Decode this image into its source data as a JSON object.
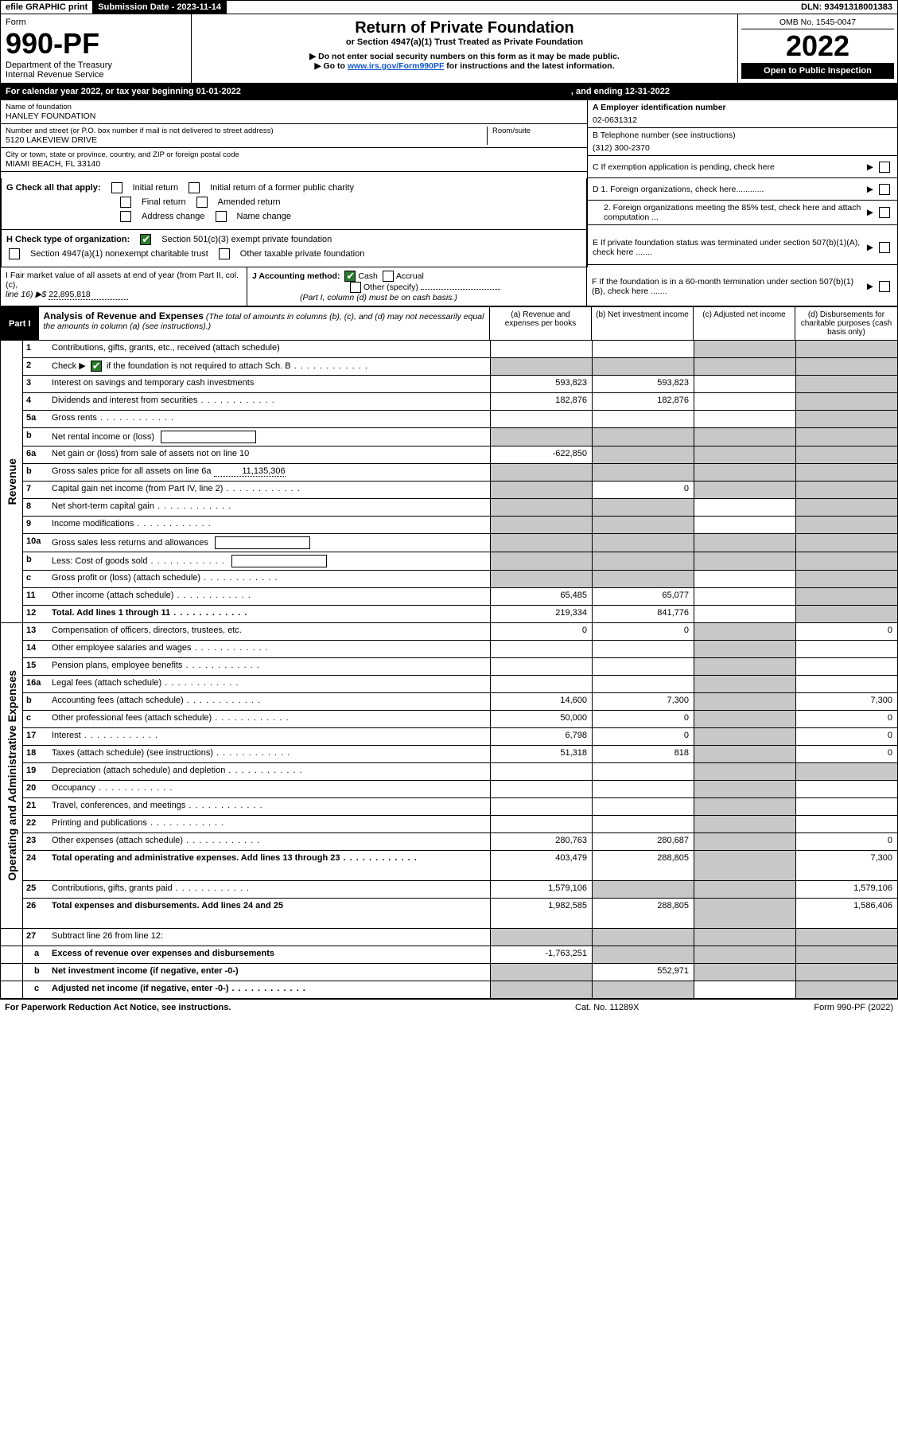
{
  "top_bar": {
    "efile": "efile GRAPHIC print",
    "submission_label": "Submission Date - 2023-11-14",
    "dln": "DLN: 93491318001383"
  },
  "header": {
    "form_word": "Form",
    "form_number": "990-PF",
    "dept": "Department of the Treasury",
    "irs": "Internal Revenue Service",
    "title": "Return of Private Foundation",
    "subtitle": "or Section 4947(a)(1) Trust Treated as Private Foundation",
    "instr1": "▶ Do not enter social security numbers on this form as it may be made public.",
    "instr2_pre": "▶ Go to ",
    "instr2_link": "www.irs.gov/Form990PF",
    "instr2_post": " for instructions and the latest information.",
    "omb": "OMB No. 1545-0047",
    "year": "2022",
    "open_public": "Open to Public Inspection"
  },
  "year_bar": {
    "pre": "For calendar year 2022, or tax year beginning 01-01-2022",
    "post": ", and ending 12-31-2022"
  },
  "entity": {
    "name_label": "Name of foundation",
    "name": "HANLEY FOUNDATION",
    "addr_label": "Number and street (or P.O. box number if mail is not delivered to street address)",
    "addr": "5120 LAKEVIEW DRIVE",
    "room_label": "Room/suite",
    "city_label": "City or town, state or province, country, and ZIP or foreign postal code",
    "city": "MIAMI BEACH, FL  33140",
    "a_label": "A Employer identification number",
    "a_val": "02-0631312",
    "b_label": "B Telephone number (see instructions)",
    "b_val": "(312) 300-2370",
    "c_label": "C If exemption application is pending, check here",
    "d1_label": "D 1. Foreign organizations, check here............",
    "d2_label": "2. Foreign organizations meeting the 85% test, check here and attach computation ...",
    "e_label": "E  If private foundation status was terminated under section 507(b)(1)(A), check here .......",
    "f_label": "F  If the foundation is in a 60-month termination under section 507(b)(1)(B), check here ......."
  },
  "g": {
    "label": "G Check all that apply:",
    "initial": "Initial return",
    "initial_former": "Initial return of a former public charity",
    "final": "Final return",
    "amended": "Amended return",
    "address": "Address change",
    "name_change": "Name change"
  },
  "h": {
    "label": "H Check type of organization:",
    "opt1": "Section 501(c)(3) exempt private foundation",
    "opt2": "Section 4947(a)(1) nonexempt charitable trust",
    "opt3": "Other taxable private foundation"
  },
  "i": {
    "label": "I Fair market value of all assets at end of year (from Part II, col. (c),",
    "line16": "line 16) ▶$",
    "val": "22,895,818"
  },
  "j": {
    "label": "J Accounting method:",
    "cash": "Cash",
    "accrual": "Accrual",
    "other": "Other (specify)",
    "note": "(Part I, column (d) must be on cash basis.)"
  },
  "part1": {
    "tab": "Part I",
    "title": "Analysis of Revenue and Expenses",
    "note": "(The total of amounts in columns (b), (c), and (d) may not necessarily equal the amounts in column (a) (see instructions).)",
    "col_a": "(a) Revenue and expenses per books",
    "col_b": "(b) Net investment income",
    "col_c": "(c) Adjusted net income",
    "col_d": "(d) Disbursements for charitable purposes (cash basis only)"
  },
  "side_labels": {
    "revenue": "Revenue",
    "expenses": "Operating and Administrative Expenses"
  },
  "rows": [
    {
      "n": "1",
      "d": "Contributions, gifts, grants, etc., received (attach schedule)",
      "a": "",
      "b": "",
      "c": "grey",
      "dd": "grey"
    },
    {
      "n": "2",
      "d": "Check ▶ [x] if the foundation is not required to attach Sch. B",
      "a": "grey",
      "b": "grey",
      "c": "grey",
      "dd": "grey",
      "dots": true,
      "check": true
    },
    {
      "n": "3",
      "d": "Interest on savings and temporary cash investments",
      "a": "593,823",
      "b": "593,823",
      "c": "",
      "dd": "grey"
    },
    {
      "n": "4",
      "d": "Dividends and interest from securities",
      "a": "182,876",
      "b": "182,876",
      "c": "",
      "dd": "grey",
      "dots": true
    },
    {
      "n": "5a",
      "d": "Gross rents",
      "a": "",
      "b": "",
      "c": "",
      "dd": "grey",
      "dots": true
    },
    {
      "n": "b",
      "d": "Net rental income or (loss)",
      "a": "grey",
      "b": "grey",
      "c": "grey",
      "dd": "grey",
      "inline": true
    },
    {
      "n": "6a",
      "d": "Net gain or (loss) from sale of assets not on line 10",
      "a": "-622,850",
      "b": "grey",
      "c": "grey",
      "dd": "grey"
    },
    {
      "n": "b",
      "d": "Gross sales price for all assets on line 6a",
      "a": "grey",
      "b": "grey",
      "c": "grey",
      "dd": "grey",
      "inline_val": "11,135,306"
    },
    {
      "n": "7",
      "d": "Capital gain net income (from Part IV, line 2)",
      "a": "grey",
      "b": "0",
      "c": "grey",
      "dd": "grey",
      "dots": true
    },
    {
      "n": "8",
      "d": "Net short-term capital gain",
      "a": "grey",
      "b": "grey",
      "c": "",
      "dd": "grey",
      "dots": true
    },
    {
      "n": "9",
      "d": "Income modifications",
      "a": "grey",
      "b": "grey",
      "c": "",
      "dd": "grey",
      "dots": true
    },
    {
      "n": "10a",
      "d": "Gross sales less returns and allowances",
      "a": "grey",
      "b": "grey",
      "c": "grey",
      "dd": "grey",
      "inline": true
    },
    {
      "n": "b",
      "d": "Less: Cost of goods sold",
      "a": "grey",
      "b": "grey",
      "c": "grey",
      "dd": "grey",
      "inline": true,
      "dots": true
    },
    {
      "n": "c",
      "d": "Gross profit or (loss) (attach schedule)",
      "a": "grey",
      "b": "grey",
      "c": "",
      "dd": "grey",
      "dots": true
    },
    {
      "n": "11",
      "d": "Other income (attach schedule)",
      "a": "65,485",
      "b": "65,077",
      "c": "",
      "dd": "grey",
      "dots": true
    },
    {
      "n": "12",
      "d": "Total. Add lines 1 through 11",
      "a": "219,334",
      "b": "841,776",
      "c": "",
      "dd": "grey",
      "bold": true,
      "dots": true
    }
  ],
  "exp_rows": [
    {
      "n": "13",
      "d": "Compensation of officers, directors, trustees, etc.",
      "a": "0",
      "b": "0",
      "c": "grey",
      "dd": "0"
    },
    {
      "n": "14",
      "d": "Other employee salaries and wages",
      "a": "",
      "b": "",
      "c": "grey",
      "dd": "",
      "dots": true
    },
    {
      "n": "15",
      "d": "Pension plans, employee benefits",
      "a": "",
      "b": "",
      "c": "grey",
      "dd": "",
      "dots": true
    },
    {
      "n": "16a",
      "d": "Legal fees (attach schedule)",
      "a": "",
      "b": "",
      "c": "grey",
      "dd": "",
      "dots": true
    },
    {
      "n": "b",
      "d": "Accounting fees (attach schedule)",
      "a": "14,600",
      "b": "7,300",
      "c": "grey",
      "dd": "7,300",
      "dots": true
    },
    {
      "n": "c",
      "d": "Other professional fees (attach schedule)",
      "a": "50,000",
      "b": "0",
      "c": "grey",
      "dd": "0",
      "dots": true
    },
    {
      "n": "17",
      "d": "Interest",
      "a": "6,798",
      "b": "0",
      "c": "grey",
      "dd": "0",
      "dots": true
    },
    {
      "n": "18",
      "d": "Taxes (attach schedule) (see instructions)",
      "a": "51,318",
      "b": "818",
      "c": "grey",
      "dd": "0",
      "dots": true
    },
    {
      "n": "19",
      "d": "Depreciation (attach schedule) and depletion",
      "a": "",
      "b": "",
      "c": "grey",
      "dd": "grey",
      "dots": true
    },
    {
      "n": "20",
      "d": "Occupancy",
      "a": "",
      "b": "",
      "c": "grey",
      "dd": "",
      "dots": true
    },
    {
      "n": "21",
      "d": "Travel, conferences, and meetings",
      "a": "",
      "b": "",
      "c": "grey",
      "dd": "",
      "dots": true
    },
    {
      "n": "22",
      "d": "Printing and publications",
      "a": "",
      "b": "",
      "c": "grey",
      "dd": "",
      "dots": true
    },
    {
      "n": "23",
      "d": "Other expenses (attach schedule)",
      "a": "280,763",
      "b": "280,687",
      "c": "grey",
      "dd": "0",
      "dots": true
    },
    {
      "n": "24",
      "d": "Total operating and administrative expenses. Add lines 13 through 23",
      "a": "403,479",
      "b": "288,805",
      "c": "grey",
      "dd": "7,300",
      "bold": true,
      "dots": true,
      "tall": true
    },
    {
      "n": "25",
      "d": "Contributions, gifts, grants paid",
      "a": "1,579,106",
      "b": "grey",
      "c": "grey",
      "dd": "1,579,106",
      "dots": true
    },
    {
      "n": "26",
      "d": "Total expenses and disbursements. Add lines 24 and 25",
      "a": "1,982,585",
      "b": "288,805",
      "c": "grey",
      "dd": "1,586,406",
      "bold": true,
      "tall": true
    }
  ],
  "bottom_rows": [
    {
      "n": "27",
      "d": "Subtract line 26 from line 12:",
      "a": "grey",
      "b": "grey",
      "c": "grey",
      "dd": "grey"
    },
    {
      "n": "a",
      "d": "Excess of revenue over expenses and disbursements",
      "a": "-1,763,251",
      "b": "grey",
      "c": "grey",
      "dd": "grey",
      "bold": true
    },
    {
      "n": "b",
      "d": "Net investment income (if negative, enter -0-)",
      "a": "grey",
      "b": "552,971",
      "c": "grey",
      "dd": "grey",
      "bold": true
    },
    {
      "n": "c",
      "d": "Adjusted net income (if negative, enter -0-)",
      "a": "grey",
      "b": "grey",
      "c": "",
      "dd": "grey",
      "bold": true,
      "dots": true
    }
  ],
  "footer": {
    "left": "For Paperwork Reduction Act Notice, see instructions.",
    "mid": "Cat. No. 11289X",
    "right": "Form 990-PF (2022)"
  }
}
